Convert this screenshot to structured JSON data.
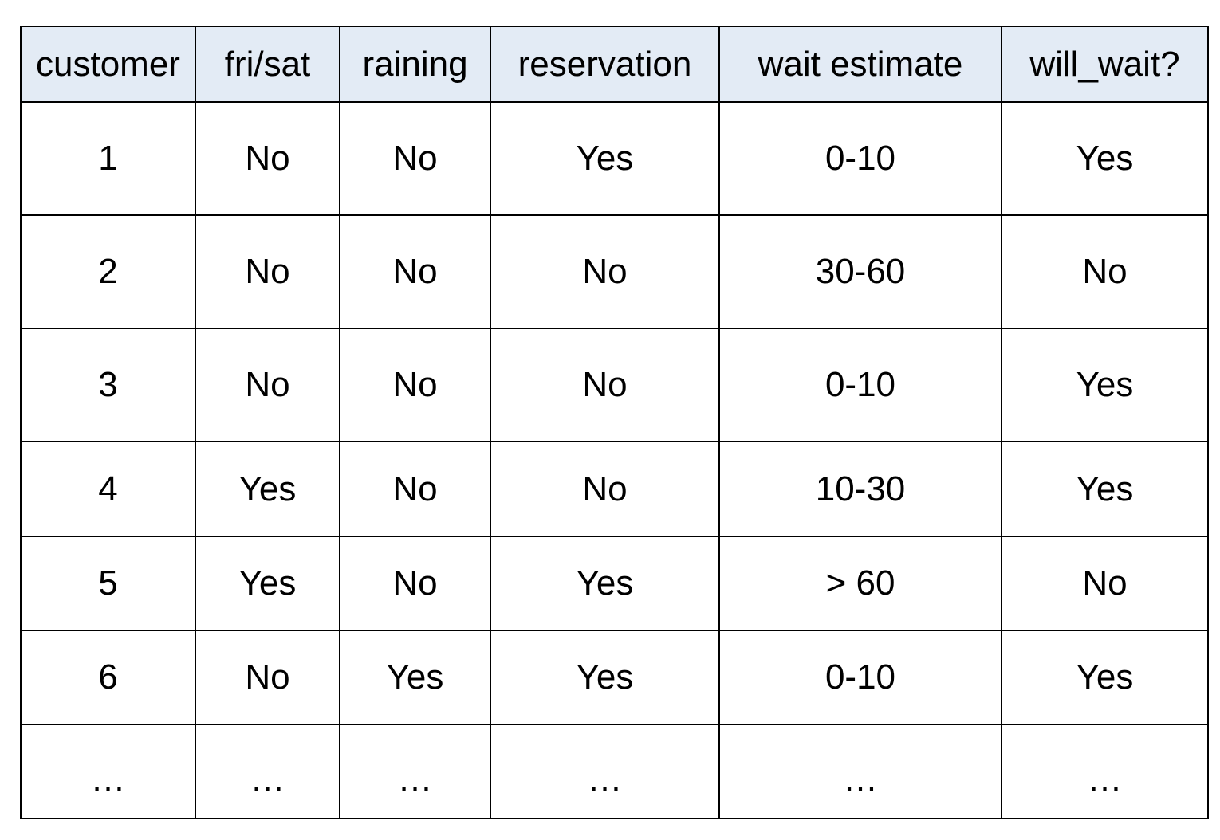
{
  "table": {
    "headers": [
      "customer",
      "fri/sat",
      "raining",
      "reservation",
      "wait estimate",
      "will_wait?"
    ],
    "rows": [
      [
        "1",
        "No",
        "No",
        "Yes",
        "0-10",
        "Yes"
      ],
      [
        "2",
        "No",
        "No",
        "No",
        "30-60",
        "No"
      ],
      [
        "3",
        "No",
        "No",
        "No",
        "0-10",
        "Yes"
      ],
      [
        "4",
        "Yes",
        "No",
        "No",
        "10-30",
        "Yes"
      ],
      [
        "5",
        "Yes",
        "No",
        "Yes",
        "> 60",
        "No"
      ],
      [
        "6",
        "No",
        "Yes",
        "Yes",
        "0-10",
        "Yes"
      ],
      [
        "…",
        "…",
        "…",
        "…",
        "…",
        "…"
      ]
    ]
  },
  "colors": {
    "header_background": "#e3ebf5",
    "border": "#000000"
  }
}
